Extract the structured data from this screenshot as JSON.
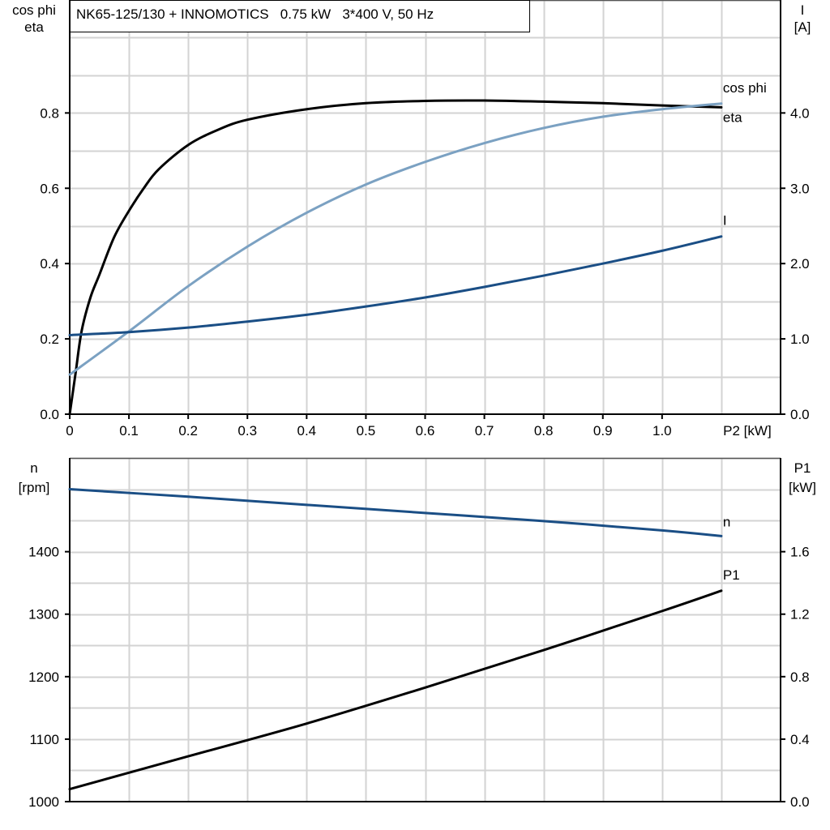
{
  "title": "NK65-125/130 + INNOMOTICS   0.75 kW   3*400 V, 50 Hz",
  "colors": {
    "eta": "#000000",
    "cos_phi": "#7ba1c2",
    "I": "#1a4e85",
    "n": "#1a4e85",
    "P1": "#000000",
    "grid": "#d3d3d3"
  },
  "chart_data": [
    {
      "type": "line",
      "xlabel": "P2 [kW]",
      "xlim": [
        0,
        1.2
      ],
      "xticks": [
        "0",
        "0.1",
        "0.2",
        "0.3",
        "0.4",
        "0.5",
        "0.6",
        "0.7",
        "0.8",
        "0.9",
        "1.0"
      ],
      "ylabel_left": [
        "cos phi",
        "eta"
      ],
      "ylim_left": [
        0,
        1.1
      ],
      "yticks_left": [
        "0.0",
        "0.2",
        "0.4",
        "0.6",
        "0.8"
      ],
      "ylabel_right": [
        "I",
        "[A]"
      ],
      "ylim_right": [
        0,
        5.5
      ],
      "yticks_right": [
        "0.0",
        "1.0",
        "2.0",
        "3.0",
        "4.0"
      ],
      "grid": true,
      "series": [
        {
          "name": "eta",
          "axis": "left",
          "color_key": "eta",
          "x": [
            0,
            0.01,
            0.02,
            0.035,
            0.05,
            0.075,
            0.1,
            0.125,
            0.15,
            0.2,
            0.25,
            0.3,
            0.4,
            0.5,
            0.6,
            0.7,
            0.8,
            0.9,
            1.0,
            1.1
          ],
          "y": [
            0,
            0.11,
            0.22,
            0.31,
            0.37,
            0.47,
            0.54,
            0.6,
            0.65,
            0.715,
            0.755,
            0.782,
            0.81,
            0.826,
            0.832,
            0.833,
            0.83,
            0.826,
            0.82,
            0.815
          ]
        },
        {
          "name": "cos phi",
          "axis": "left",
          "color_key": "cos_phi",
          "x": [
            0,
            0.1,
            0.2,
            0.3,
            0.4,
            0.5,
            0.6,
            0.7,
            0.8,
            0.9,
            1.0,
            1.1
          ],
          "y": [
            0.105,
            0.22,
            0.34,
            0.445,
            0.535,
            0.61,
            0.67,
            0.72,
            0.76,
            0.79,
            0.81,
            0.825
          ]
        },
        {
          "name": "I",
          "axis": "right",
          "color_key": "I",
          "x": [
            0,
            0.1,
            0.2,
            0.3,
            0.4,
            0.5,
            0.6,
            0.7,
            0.8,
            0.9,
            1.0,
            1.1
          ],
          "y": [
            1.05,
            1.09,
            1.15,
            1.23,
            1.32,
            1.43,
            1.55,
            1.69,
            1.84,
            2.0,
            2.17,
            2.36
          ]
        }
      ]
    },
    {
      "type": "line",
      "xlim": [
        0,
        1.2
      ],
      "ylabel_left": [
        "n",
        "[rpm]"
      ],
      "ylim_left": [
        1000,
        1550
      ],
      "yticks_left": [
        "1000",
        "1100",
        "1200",
        "1300",
        "1400"
      ],
      "ylabel_right": [
        "P1",
        "[kW]"
      ],
      "ylim_right": [
        0,
        2.2
      ],
      "yticks_right": [
        "0.0",
        "0.4",
        "0.8",
        "1.2",
        "1.6"
      ],
      "grid": true,
      "series": [
        {
          "name": "n",
          "axis": "left",
          "color_key": "n",
          "x": [
            0,
            0.2,
            0.4,
            0.6,
            0.8,
            1.0,
            1.1
          ],
          "y": [
            1500,
            1488,
            1475,
            1462,
            1449,
            1434,
            1425
          ]
        },
        {
          "name": "P1",
          "axis": "right",
          "color_key": "P1",
          "x": [
            0,
            0.2,
            0.4,
            0.6,
            0.8,
            1.0,
            1.1
          ],
          "y": [
            0.08,
            0.29,
            0.5,
            0.73,
            0.97,
            1.22,
            1.35
          ]
        }
      ]
    }
  ]
}
